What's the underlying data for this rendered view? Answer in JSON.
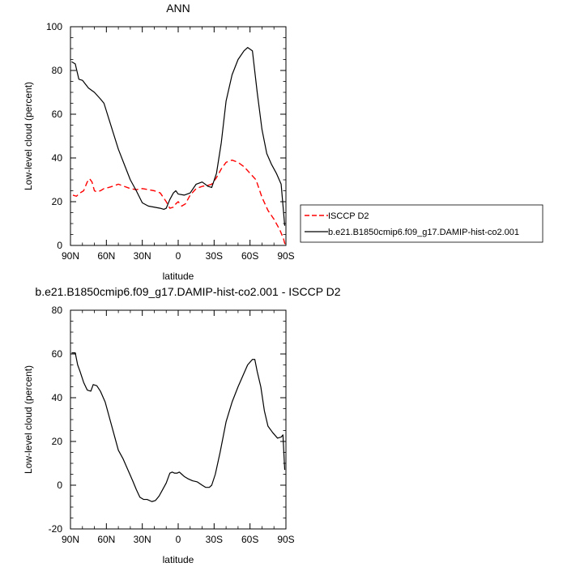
{
  "chart_data": [
    {
      "type": "line",
      "title": "ANN",
      "xlabel": "latitude",
      "ylabel": "Low-level cloud (percent)",
      "xlim": [
        90,
        -90
      ],
      "ylim": [
        0,
        100
      ],
      "xtick_values": [
        90,
        60,
        30,
        0,
        -30,
        -60,
        -90
      ],
      "xtick_labels": [
        "90N",
        "60N",
        "30N",
        "0",
        "30S",
        "60S",
        "90S"
      ],
      "ytick_values": [
        0,
        20,
        40,
        60,
        80,
        100
      ],
      "ytick_labels": [
        "0",
        "20",
        "40",
        "60",
        "80",
        "100"
      ],
      "legend_position": "right",
      "series": [
        {
          "name": "ISCCP D2",
          "color": "#ff0000",
          "dash": "dashed",
          "points": [
            [
              88,
              23
            ],
            [
              85,
              22.5
            ],
            [
              82,
              24
            ],
            [
              79,
              25
            ],
            [
              76,
              29
            ],
            [
              74,
              30.5
            ],
            [
              72,
              29
            ],
            [
              70,
              25
            ],
            [
              68,
              24.5
            ],
            [
              65,
              25
            ],
            [
              62,
              26
            ],
            [
              58,
              26.5
            ],
            [
              55,
              27
            ],
            [
              50,
              28
            ],
            [
              45,
              27
            ],
            [
              40,
              26
            ],
            [
              35,
              25.5
            ],
            [
              30,
              26
            ],
            [
              25,
              25.5
            ],
            [
              20,
              25
            ],
            [
              15,
              24
            ],
            [
              10,
              20
            ],
            [
              7,
              17
            ],
            [
              4,
              17.5
            ],
            [
              2,
              19
            ],
            [
              0,
              20
            ],
            [
              -3,
              18
            ],
            [
              -6,
              19
            ],
            [
              -10,
              23
            ],
            [
              -15,
              26
            ],
            [
              -20,
              27
            ],
            [
              -25,
              27.5
            ],
            [
              -28,
              28
            ],
            [
              -32,
              31
            ],
            [
              -36,
              35
            ],
            [
              -40,
              38
            ],
            [
              -45,
              39
            ],
            [
              -50,
              38
            ],
            [
              -55,
              36
            ],
            [
              -60,
              33
            ],
            [
              -65,
              30
            ],
            [
              -70,
              22
            ],
            [
              -75,
              16
            ],
            [
              -80,
              12
            ],
            [
              -85,
              7
            ],
            [
              -88,
              3
            ],
            [
              -89.5,
              0
            ]
          ]
        },
        {
          "name": "b.e21.B1850cmip6.f09_g17.DAMIP-hist-co2.001",
          "color": "#000000",
          "dash": "solid",
          "points": [
            [
              89,
              84
            ],
            [
              86,
              83
            ],
            [
              83,
              76
            ],
            [
              80,
              75.5
            ],
            [
              75,
              72
            ],
            [
              70,
              70
            ],
            [
              65,
              67
            ],
            [
              62,
              65
            ],
            [
              58,
              58
            ],
            [
              54,
              51
            ],
            [
              50,
              44
            ],
            [
              45,
              37
            ],
            [
              40,
              30
            ],
            [
              35,
              25
            ],
            [
              30,
              19.5
            ],
            [
              25,
              18
            ],
            [
              20,
              17.5
            ],
            [
              15,
              17
            ],
            [
              12,
              16.5
            ],
            [
              10,
              17
            ],
            [
              7,
              21
            ],
            [
              4,
              24
            ],
            [
              2,
              25
            ],
            [
              0,
              23.5
            ],
            [
              -5,
              23
            ],
            [
              -10,
              24
            ],
            [
              -15,
              28
            ],
            [
              -20,
              29
            ],
            [
              -25,
              27
            ],
            [
              -28,
              26.5
            ],
            [
              -32,
              33
            ],
            [
              -36,
              47
            ],
            [
              -40,
              66
            ],
            [
              -45,
              78
            ],
            [
              -50,
              85
            ],
            [
              -55,
              89
            ],
            [
              -58,
              90.5
            ],
            [
              -62,
              89
            ],
            [
              -66,
              70
            ],
            [
              -70,
              53
            ],
            [
              -74,
              42
            ],
            [
              -78,
              37
            ],
            [
              -82,
              33
            ],
            [
              -86,
              28
            ],
            [
              -89,
              9
            ]
          ]
        }
      ]
    },
    {
      "type": "line",
      "title": "b.e21.B1850cmip6.f09_g17.DAMIP-hist-co2.001 - ISCCP D2",
      "xlabel": "latitude",
      "ylabel": "Low-level cloud (percent)",
      "xlim": [
        90,
        -90
      ],
      "ylim": [
        -20,
        80
      ],
      "xtick_values": [
        90,
        60,
        30,
        0,
        -30,
        -60,
        -90
      ],
      "xtick_labels": [
        "90N",
        "60N",
        "30N",
        "0",
        "30S",
        "60S",
        "90S"
      ],
      "ytick_values": [
        -20,
        0,
        20,
        40,
        60,
        80
      ],
      "ytick_labels": [
        "-20",
        "0",
        "20",
        "40",
        "60",
        "80"
      ],
      "series": [
        {
          "color": "#000000",
          "dash": "solid",
          "points": [
            [
              89,
              60.5
            ],
            [
              86,
              60.5
            ],
            [
              84,
              55
            ],
            [
              82,
              52
            ],
            [
              79,
              47
            ],
            [
              76,
              43.5
            ],
            [
              73,
              43
            ],
            [
              71,
              46
            ],
            [
              68,
              45.5
            ],
            [
              65,
              43
            ],
            [
              61,
              38
            ],
            [
              58,
              32
            ],
            [
              54,
              24
            ],
            [
              50,
              16
            ],
            [
              46,
              12
            ],
            [
              42,
              7
            ],
            [
              38,
              2
            ],
            [
              35,
              -2
            ],
            [
              32,
              -5.5
            ],
            [
              29,
              -6.5
            ],
            [
              26,
              -6.5
            ],
            [
              22,
              -7.5
            ],
            [
              19,
              -7
            ],
            [
              16,
              -5
            ],
            [
              13,
              -2
            ],
            [
              10,
              1
            ],
            [
              7,
              5.5
            ],
            [
              5,
              6
            ],
            [
              3,
              5.5
            ],
            [
              1,
              5.5
            ],
            [
              -1,
              6
            ],
            [
              -3,
              5
            ],
            [
              -5,
              4
            ],
            [
              -8,
              3
            ],
            [
              -12,
              2
            ],
            [
              -16,
              1.5
            ],
            [
              -20,
              0
            ],
            [
              -23,
              -1
            ],
            [
              -26,
              -1
            ],
            [
              -28,
              0
            ],
            [
              -31,
              5
            ],
            [
              -35,
              15
            ],
            [
              -40,
              29
            ],
            [
              -45,
              38
            ],
            [
              -50,
              45
            ],
            [
              -54,
              50
            ],
            [
              -58,
              55
            ],
            [
              -62,
              57.5
            ],
            [
              -64,
              57.5
            ],
            [
              -66,
              52
            ],
            [
              -69,
              45
            ],
            [
              -72,
              34
            ],
            [
              -75,
              27
            ],
            [
              -79,
              24
            ],
            [
              -83,
              21.5
            ],
            [
              -86,
              22
            ],
            [
              -87.5,
              23
            ],
            [
              -89,
              7
            ]
          ]
        }
      ]
    }
  ]
}
